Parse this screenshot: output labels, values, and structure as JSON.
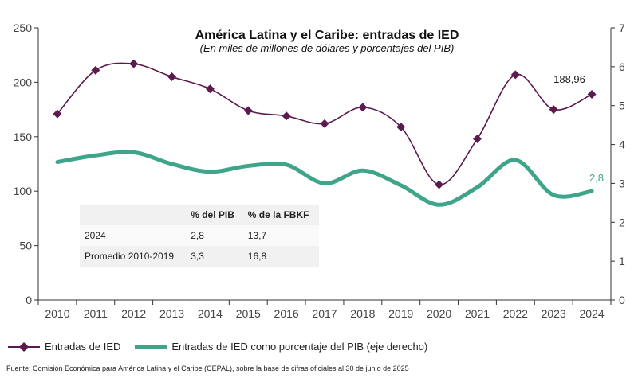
{
  "chart_data": {
    "type": "line",
    "title": "América Latina y el Caribe: entradas de IED",
    "subtitle": "(En miles de millones de dólares y porcentajes del PIB)",
    "x": [
      "2010",
      "2011",
      "2012",
      "2013",
      "2014",
      "2015",
      "2016",
      "2017",
      "2018",
      "2019",
      "2020",
      "2021",
      "2022",
      "2023",
      "2024"
    ],
    "y_left": {
      "ticks": [
        "0",
        "50",
        "100",
        "150",
        "200",
        "250"
      ],
      "ylim": [
        0,
        250
      ]
    },
    "y_right": {
      "ticks": [
        "0",
        "1",
        "2",
        "3",
        "4",
        "5",
        "6",
        "7"
      ],
      "ylim": [
        0,
        7
      ]
    },
    "series": [
      {
        "name": "Entradas de IED",
        "axis": "left",
        "color": "#5c1a4e",
        "marker": "diamond",
        "values": [
          171,
          211,
          217,
          205,
          194,
          174,
          169,
          162,
          177,
          159,
          106,
          148,
          207,
          175,
          188.96
        ]
      },
      {
        "name": "Entradas de IED como porcentaje del PIB (eje derecho)",
        "axis": "right",
        "color": "#3ea58a",
        "values": [
          3.55,
          3.72,
          3.8,
          3.5,
          3.3,
          3.45,
          3.48,
          3.0,
          3.33,
          2.95,
          2.45,
          2.9,
          3.6,
          2.7,
          2.8
        ]
      }
    ],
    "annotations": {
      "last_ied": "188,96",
      "last_pct": "2,8"
    },
    "legend_position": "bottom",
    "grid": false
  },
  "table": {
    "headers": [
      "",
      "% del PIB",
      "% de la FBKF"
    ],
    "rows": [
      [
        "2024",
        "2,8",
        "13,7"
      ],
      [
        "Promedio 2010-2019",
        "3,3",
        "16,8"
      ]
    ]
  },
  "footer": "Fuente: Comisión Económica para América Latina y el Caribe (CEPAL), sobre la base de cifras oficiales al 30 de junio de 2025"
}
